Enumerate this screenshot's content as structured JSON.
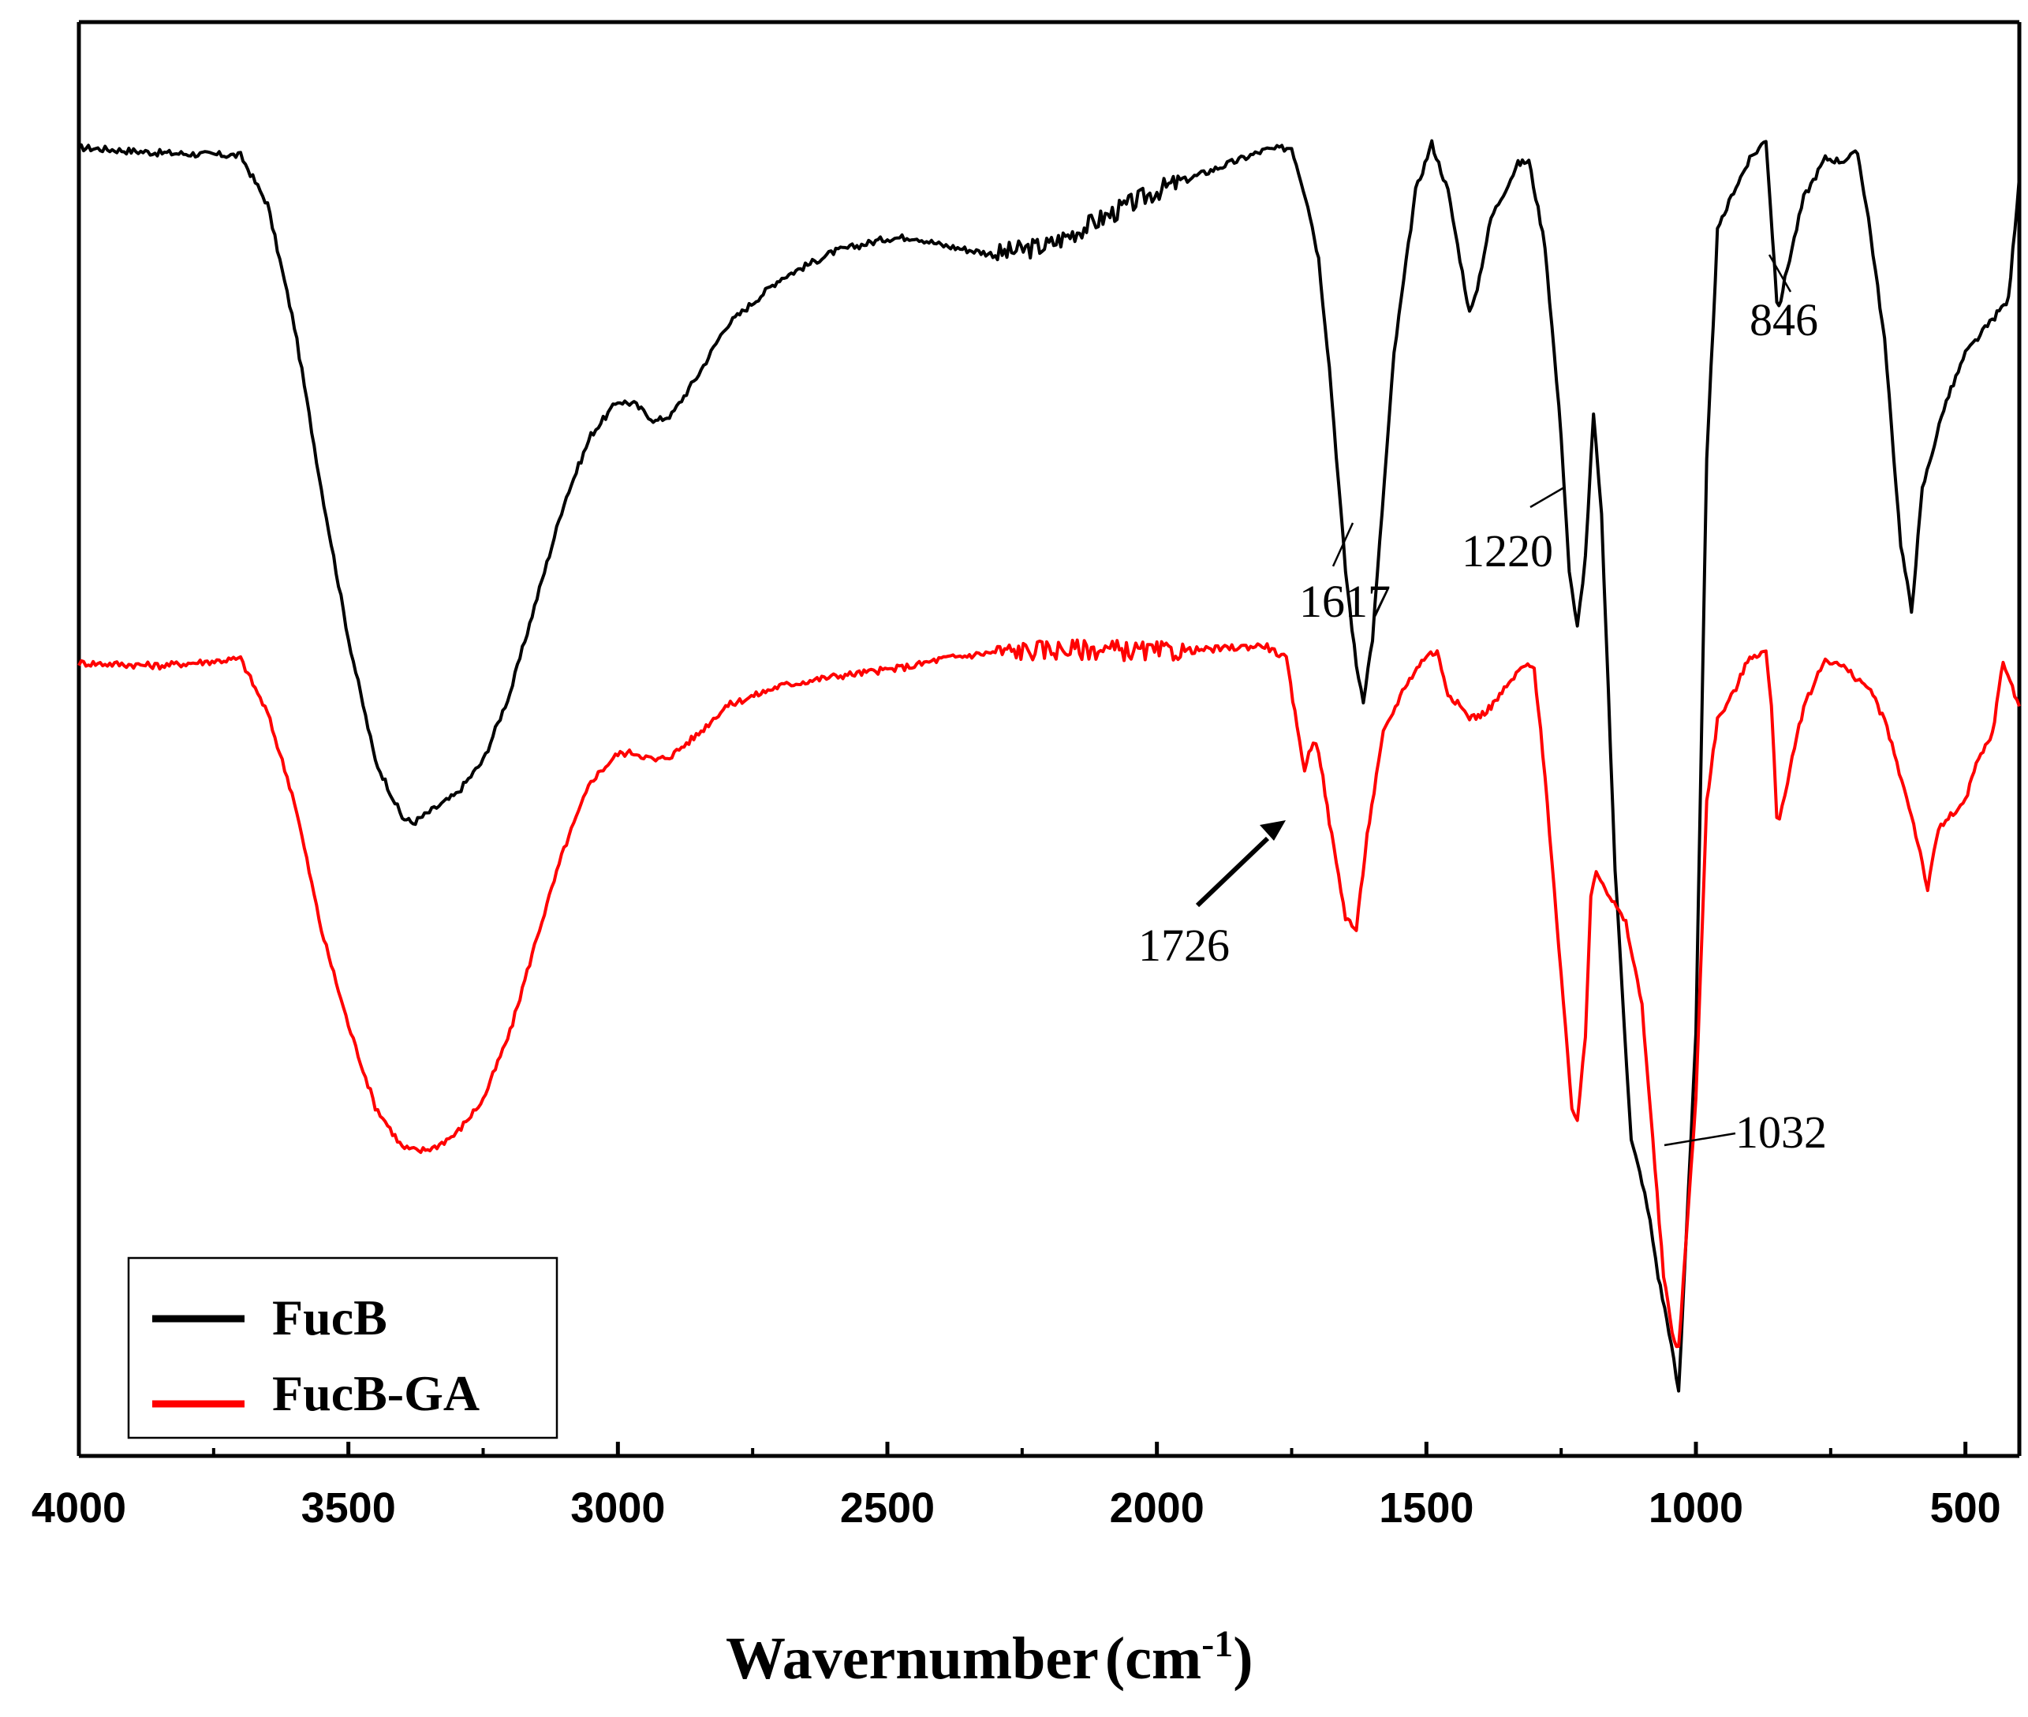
{
  "chart_data": {
    "type": "line",
    "title": "",
    "xlabel": "Wavernumber",
    "xlabel_unit_base": "(cm",
    "xlabel_unit_sup": "-1",
    "xlabel_unit_close": ")",
    "ylabel": "",
    "xlim": [
      4000,
      400
    ],
    "x_reversed": true,
    "y_axis_ticks": false,
    "grid": false,
    "xticks": [
      4000,
      3500,
      3000,
      2500,
      2000,
      1500,
      1000,
      500
    ],
    "xtick_labels": [
      "4000",
      "3500",
      "3000",
      "2500",
      "2000",
      "1500",
      "1000",
      "500"
    ],
    "ylim": [
      0,
      100
    ],
    "legend": {
      "placement": "bottom-left",
      "entries": [
        {
          "label": "FucB",
          "color": "#000000"
        },
        {
          "label": "FucB-GA",
          "color": "#ff0000"
        }
      ]
    },
    "series": [
      {
        "name": "FucB",
        "color": "#000000",
        "noise": 0.5,
        "x": [
          4000,
          3850,
          3700,
          3650,
          3600,
          3550,
          3500,
          3450,
          3400,
          3380,
          3350,
          3300,
          3250,
          3200,
          3150,
          3100,
          3050,
          3000,
          2970,
          2930,
          2900,
          2850,
          2800,
          2700,
          2600,
          2500,
          2450,
          2400,
          2300,
          2200,
          2100,
          2000,
          1900,
          1800,
          1750,
          1720,
          1700,
          1680,
          1650,
          1630,
          1617,
          1600,
          1560,
          1520,
          1490,
          1460,
          1420,
          1410,
          1380,
          1330,
          1310,
          1280,
          1250,
          1235,
          1225,
          1220,
          1205,
          1190,
          1175,
          1150,
          1120,
          1100,
          1085,
          1070,
          1050,
          1032,
          1000,
          980,
          960,
          930,
          900,
          870,
          850,
          846,
          835,
          800,
          760,
          730,
          700,
          680,
          650,
          620,
          600,
          580,
          540,
          500,
          450,
          420,
          400
        ],
        "y": [
          93.2,
          92.8,
          92.6,
          89,
          80,
          68,
          57,
          48,
          43.8,
          43.4,
          44.2,
          45.5,
          48,
          53,
          60,
          67,
          72,
          74.5,
          74.3,
          73,
          73.5,
          76.5,
          80,
          83.5,
          85.5,
          86.5,
          86.6,
          86,
          85.3,
          86,
          88,
          90,
          91.5,
          93,
          93.2,
          89,
          85,
          77,
          62,
          55,
          52.5,
          57,
          78,
          90,
          93.5,
          90,
          81,
          82,
          88,
          92,
          92.2,
          86,
          72,
          62,
          59,
          57.8,
          63,
          73.5,
          66,
          40,
          20,
          17,
          14,
          10,
          6,
          1.4,
          28,
          70,
          87,
          90,
          92.3,
          93.8,
          82,
          81.3,
          83.5,
          89.5,
          92.4,
          92.2,
          92.8,
          88,
          79,
          64,
          59,
          68,
          74,
          78,
          80.5,
          82,
          91
        ]
      },
      {
        "name": "FucB-GA",
        "color": "#ff0000",
        "noise": 0.5,
        "x": [
          4000,
          3850,
          3700,
          3650,
          3600,
          3550,
          3500,
          3450,
          3400,
          3370,
          3340,
          3300,
          3250,
          3200,
          3150,
          3100,
          3050,
          3000,
          2970,
          2930,
          2900,
          2850,
          2800,
          2700,
          2600,
          2500,
          2450,
          2400,
          2300,
          2200,
          2100,
          2000,
          1900,
          1800,
          1760,
          1740,
          1726,
          1710,
          1700,
          1680,
          1650,
          1630,
          1610,
          1580,
          1540,
          1500,
          1480,
          1460,
          1420,
          1400,
          1380,
          1360,
          1320,
          1300,
          1280,
          1250,
          1230,
          1220,
          1205,
          1195,
          1185,
          1160,
          1130,
          1100,
          1080,
          1060,
          1040,
          1032,
          1000,
          980,
          960,
          930,
          900,
          870,
          860,
          850,
          845,
          830,
          800,
          760,
          730,
          700,
          680,
          650,
          600,
          580,
          570,
          550,
          500,
          480,
          450,
          430,
          400
        ],
        "y": [
          55.2,
          55,
          55.5,
          51.5,
          45,
          35.5,
          28.5,
          22.5,
          19.5,
          19.2,
          19.5,
          20.5,
          23,
          28,
          35,
          41.5,
          46.5,
          48.5,
          48.6,
          48,
          48.4,
          50,
          52,
          53.5,
          54.2,
          54.7,
          55,
          55.5,
          56,
          56.2,
          56.2,
          56,
          56.2,
          56.5,
          55.5,
          50.5,
          47.4,
          49.5,
          48.8,
          43.5,
          36.5,
          35.5,
          42.5,
          50,
          53.5,
          55.8,
          56,
          53,
          51.2,
          51.3,
          52,
          53,
          55,
          54.8,
          47,
          32,
          22.5,
          21.5,
          27.5,
          38,
          40,
          38,
          36,
          30,
          20,
          10,
          5,
          4.8,
          23,
          45,
          51,
          53,
          55.7,
          56,
          52,
          44,
          43.8,
          46.5,
          52,
          55.5,
          55,
          54,
          53.4,
          51,
          44,
          40.5,
          38.5,
          43,
          45,
          47.7,
          50,
          55.3,
          52
        ]
      }
    ],
    "annotations": [
      {
        "text": "846"
      },
      {
        "text": "1617"
      },
      {
        "text": "1220"
      },
      {
        "text": "1726"
      },
      {
        "text": "1032"
      }
    ]
  }
}
